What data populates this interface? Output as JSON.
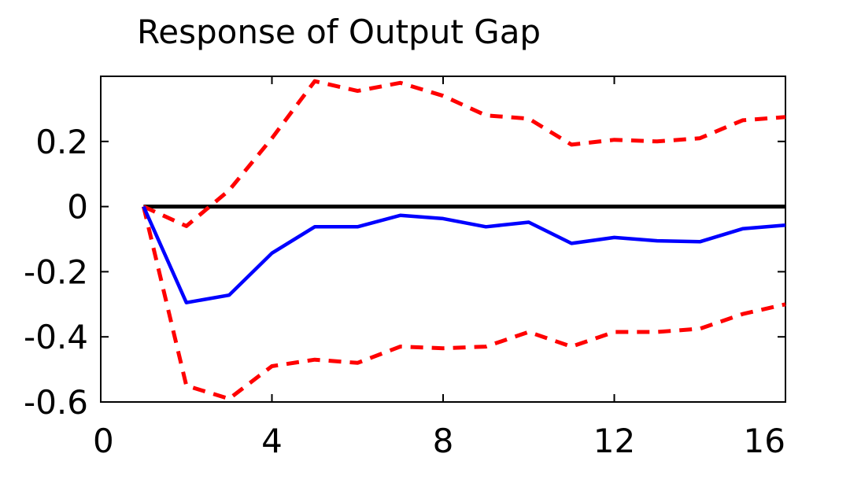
{
  "chart_data": {
    "type": "line",
    "title": "Response of Output Gap",
    "xlabel": "",
    "ylabel": "",
    "xlim": [
      0,
      16
    ],
    "ylim": [
      -0.6,
      0.4
    ],
    "xticks": [
      0,
      4,
      8,
      12,
      16
    ],
    "yticks": [
      -0.6,
      -0.4,
      -0.2,
      0,
      0.2
    ],
    "xtick_labels": [
      "0",
      "4",
      "8",
      "12",
      "16"
    ],
    "ytick_labels": [
      "-0.6",
      "-0.4",
      "-0.2",
      "0",
      "0.2"
    ],
    "grid": false,
    "legend": "none",
    "series": [
      {
        "style": "solid",
        "color": "#0000ff",
        "x": [
          1,
          2,
          3,
          4,
          5,
          6,
          7,
          8,
          9,
          10,
          11,
          12,
          13,
          14,
          15,
          16
        ],
        "y": [
          0,
          -0.295,
          -0.272,
          -0.143,
          -0.062,
          -0.062,
          -0.027,
          -0.037,
          -0.062,
          -0.048,
          -0.113,
          -0.095,
          -0.105,
          -0.108,
          -0.068,
          -0.057
        ]
      },
      {
        "style": "dashed",
        "color": "#ff0000",
        "x": [
          1,
          2,
          3,
          4,
          5,
          6,
          7,
          8,
          9,
          10,
          11,
          12,
          13,
          14,
          15,
          16
        ],
        "y": [
          0,
          -0.06,
          0.05,
          0.21,
          0.385,
          0.355,
          0.38,
          0.34,
          0.28,
          0.27,
          0.19,
          0.205,
          0.2,
          0.21,
          0.265,
          0.275
        ]
      },
      {
        "style": "dashed",
        "color": "#ff0000",
        "x": [
          1,
          2,
          3,
          4,
          5,
          6,
          7,
          8,
          9,
          10,
          11,
          12,
          13,
          14,
          15,
          16
        ],
        "y": [
          0,
          -0.55,
          -0.59,
          -0.49,
          -0.47,
          -0.48,
          -0.43,
          -0.435,
          -0.43,
          -0.385,
          -0.43,
          -0.385,
          -0.385,
          -0.375,
          -0.33,
          -0.3
        ]
      }
    ],
    "reference_line": {
      "y": 0,
      "color": "#000000"
    }
  }
}
